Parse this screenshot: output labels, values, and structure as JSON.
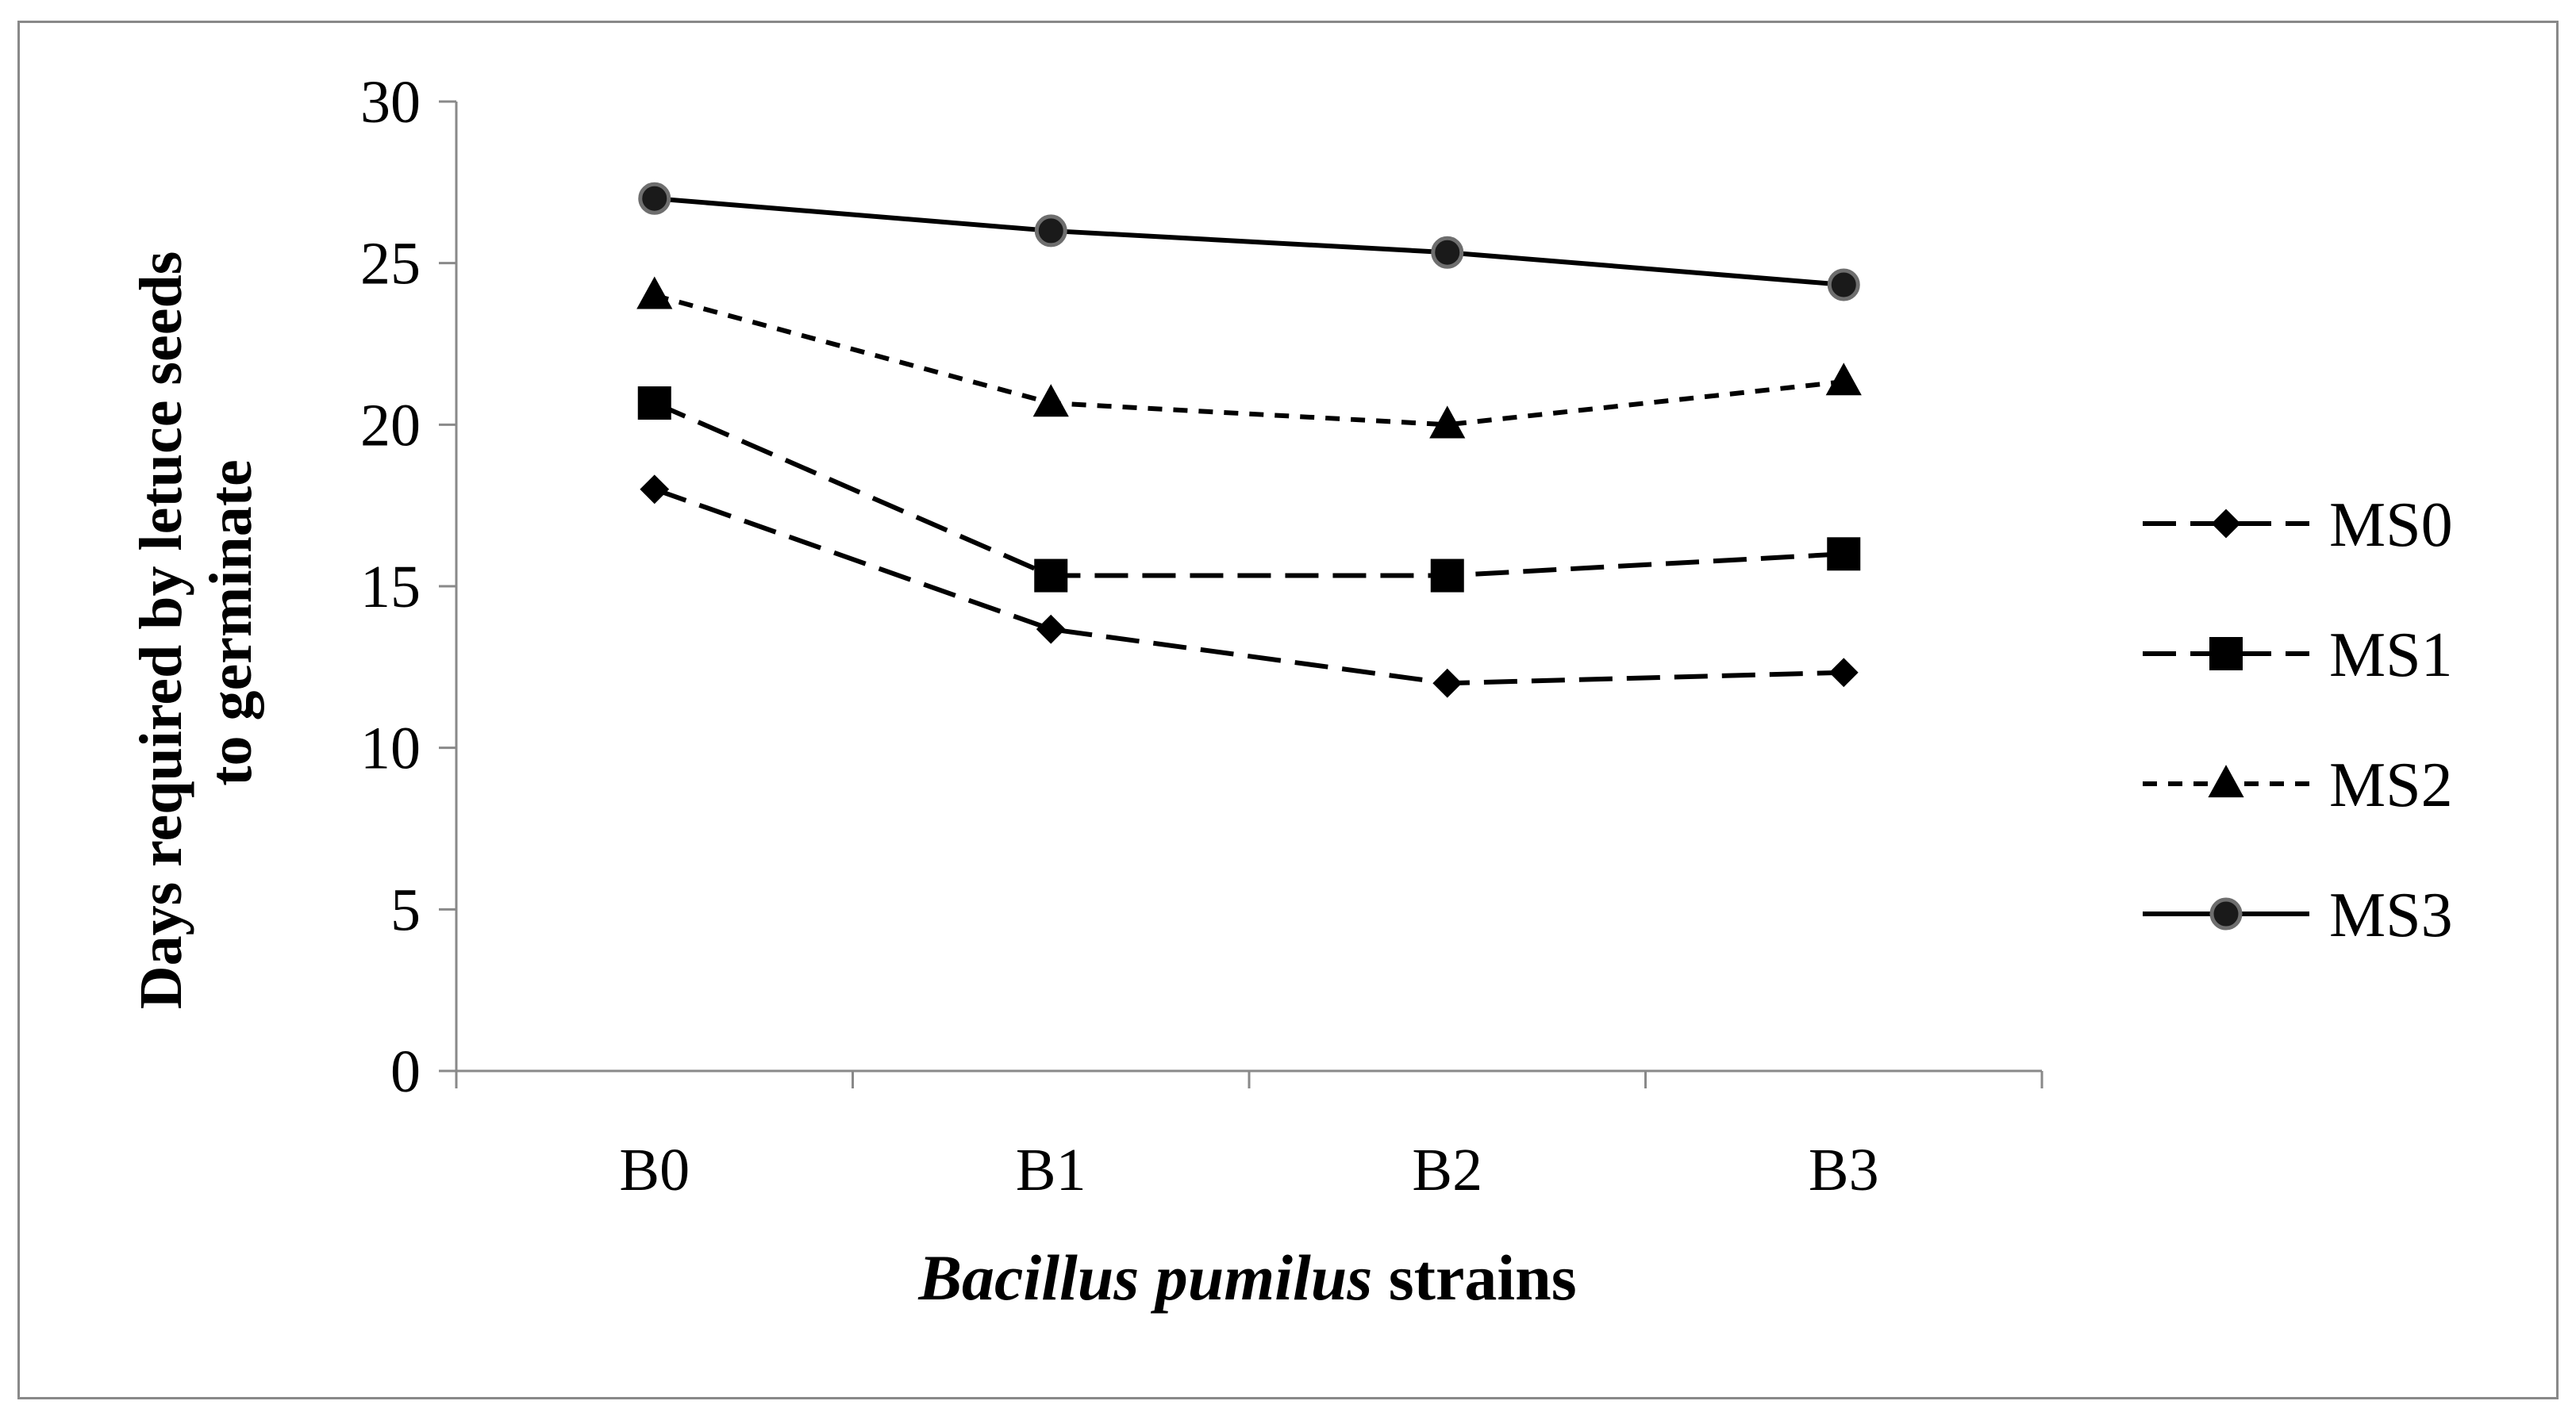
{
  "chart_data": {
    "type": "line",
    "title": "",
    "ylabel_lines": [
      "Days required by letuce seeds",
      "to germinate"
    ],
    "xlabel": {
      "italic_part": "Bacillus pumilus",
      "plain_part": " strains"
    },
    "categories": [
      "B0",
      "B1",
      "B2",
      "B3"
    ],
    "ylim": [
      0,
      30
    ],
    "yticks": [
      "0",
      "5",
      "10",
      "15",
      "20",
      "25",
      "30"
    ],
    "grid": false,
    "legend_position": "right",
    "series": [
      {
        "name": "MS0",
        "values": [
          18,
          13.67,
          12,
          12.33
        ],
        "marker": "diamond",
        "dash": "long-dash"
      },
      {
        "name": "MS1",
        "values": [
          20.67,
          15.33,
          15.33,
          16
        ],
        "marker": "square",
        "dash": "long-dash"
      },
      {
        "name": "MS2",
        "values": [
          24,
          20.67,
          20,
          21.33
        ],
        "marker": "triangle",
        "dash": "short-dash"
      },
      {
        "name": "MS3",
        "values": [
          27,
          26,
          25.33,
          24.33
        ],
        "marker": "circle",
        "dash": "solid"
      }
    ]
  }
}
